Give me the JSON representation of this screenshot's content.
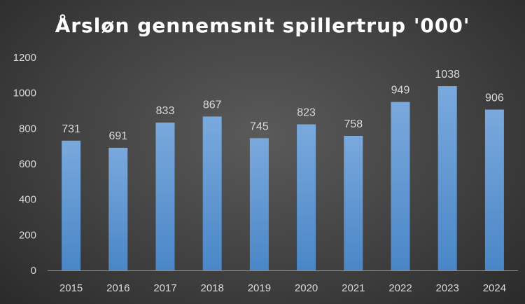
{
  "chart_data": {
    "type": "bar",
    "title": "Årsløn gennemsnit spillertrup '000'",
    "categories": [
      "2015",
      "2016",
      "2017",
      "2018",
      "2019",
      "2020",
      "2021",
      "2022",
      "2023",
      "2024"
    ],
    "series": [
      {
        "values": [
          731,
          691,
          833,
          867,
          745,
          823,
          758,
          949,
          1038,
          906
        ]
      }
    ],
    "ylim": [
      0,
      1200
    ],
    "yticks": [
      0,
      200,
      400,
      600,
      800,
      1000,
      1200
    ],
    "grid": false,
    "data_labels": true,
    "legend": "none",
    "colors": {
      "bar_top": "#7aa9dc",
      "bar_bottom": "#4a86c7",
      "text": "#d9d9d9",
      "axis": "#8c8c8c"
    }
  }
}
